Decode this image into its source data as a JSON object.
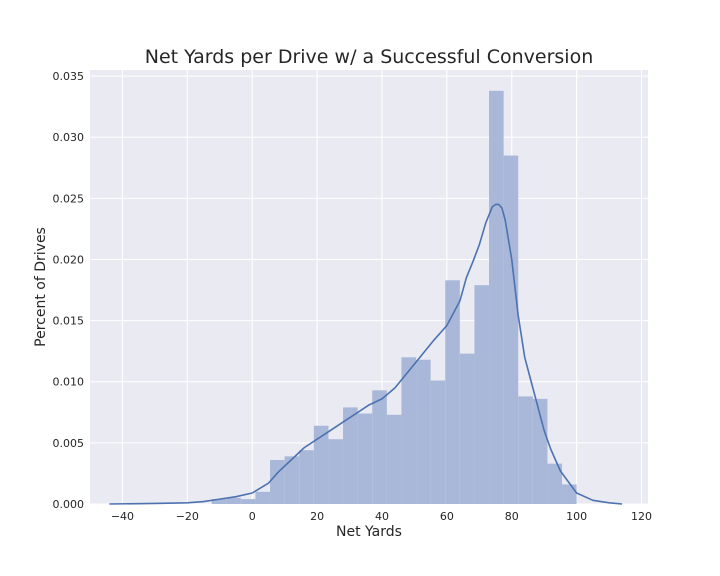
{
  "chart_data": {
    "type": "bar",
    "title": "Net Yards per Drive w/ a Successful Conversion",
    "xlabel": "Net Yards",
    "ylabel": "Percent of Drives",
    "xlim": [
      -50,
      122
    ],
    "ylim": [
      0,
      0.0355
    ],
    "grid": true,
    "background": "#eaeaf2",
    "bar_color": "#a9b8d9",
    "line_color": "#4c72b0",
    "xticks": [
      -40,
      -20,
      0,
      20,
      40,
      60,
      80,
      100,
      120
    ],
    "xtick_labels": [
      "−40",
      "−20",
      "0",
      "20",
      "40",
      "60",
      "80",
      "100",
      "120"
    ],
    "yticks": [
      0,
      0.005,
      0.01,
      0.015,
      0.02,
      0.025,
      0.03,
      0.035
    ],
    "ytick_labels": [
      "0.000",
      "0.005",
      "0.010",
      "0.015",
      "0.020",
      "0.025",
      "0.030",
      "0.035"
    ],
    "bins": [
      {
        "x0": -12.5,
        "x1": -8.0,
        "value": 0.0004
      },
      {
        "x0": -8.0,
        "x1": -3.5,
        "value": 0.0005
      },
      {
        "x0": -3.5,
        "x1": 1.0,
        "value": 0.0004
      },
      {
        "x0": 1.0,
        "x1": 5.5,
        "value": 0.001
      },
      {
        "x0": 5.5,
        "x1": 10.0,
        "value": 0.0036
      },
      {
        "x0": 10.0,
        "x1": 14.5,
        "value": 0.0039
      },
      {
        "x0": 14.5,
        "x1": 19.0,
        "value": 0.0044
      },
      {
        "x0": 19.0,
        "x1": 23.5,
        "value": 0.0064
      },
      {
        "x0": 23.5,
        "x1": 28.0,
        "value": 0.0053
      },
      {
        "x0": 28.0,
        "x1": 32.5,
        "value": 0.0079
      },
      {
        "x0": 32.5,
        "x1": 37.0,
        "value": 0.0074
      },
      {
        "x0": 37.0,
        "x1": 41.5,
        "value": 0.0093
      },
      {
        "x0": 41.5,
        "x1": 46.0,
        "value": 0.0073
      },
      {
        "x0": 46.0,
        "x1": 50.5,
        "value": 0.012
      },
      {
        "x0": 50.5,
        "x1": 55.0,
        "value": 0.0118
      },
      {
        "x0": 55.0,
        "x1": 59.5,
        "value": 0.0101
      },
      {
        "x0": 59.5,
        "x1": 64.0,
        "value": 0.0183
      },
      {
        "x0": 64.0,
        "x1": 68.5,
        "value": 0.0123
      },
      {
        "x0": 68.5,
        "x1": 73.0,
        "value": 0.0179
      },
      {
        "x0": 73.0,
        "x1": 77.5,
        "value": 0.0338
      },
      {
        "x0": 77.5,
        "x1": 82.0,
        "value": 0.0285
      },
      {
        "x0": 82.0,
        "x1": 86.5,
        "value": 0.0088
      },
      {
        "x0": 86.5,
        "x1": 91.0,
        "value": 0.0086
      },
      {
        "x0": 91.0,
        "x1": 95.5,
        "value": 0.0033
      },
      {
        "x0": 95.5,
        "x1": 100.0,
        "value": 0.0016
      }
    ],
    "kde": {
      "x": [
        -44,
        -30,
        -20,
        -15,
        -10,
        -5,
        0,
        5,
        8,
        12,
        16,
        20,
        24,
        28,
        32,
        36,
        40,
        44,
        48,
        52,
        56,
        60,
        64,
        66,
        68,
        70,
        72,
        74,
        75,
        76,
        77,
        78,
        80,
        82,
        84,
        86,
        88,
        90,
        92,
        95,
        100,
        105,
        110,
        114
      ],
      "y": [
        0,
        5e-05,
        0.0001,
        0.0002,
        0.0004,
        0.0006,
        0.0009,
        0.0017,
        0.0026,
        0.0036,
        0.0046,
        0.0053,
        0.006,
        0.0067,
        0.0074,
        0.0081,
        0.0086,
        0.0095,
        0.0108,
        0.0121,
        0.0134,
        0.0146,
        0.0166,
        0.0185,
        0.0198,
        0.0212,
        0.023,
        0.0243,
        0.0245,
        0.0245,
        0.0242,
        0.0232,
        0.02,
        0.0154,
        0.012,
        0.01,
        0.008,
        0.006,
        0.0045,
        0.0027,
        0.0009,
        0.0003,
        0.0001,
        0
      ]
    }
  }
}
